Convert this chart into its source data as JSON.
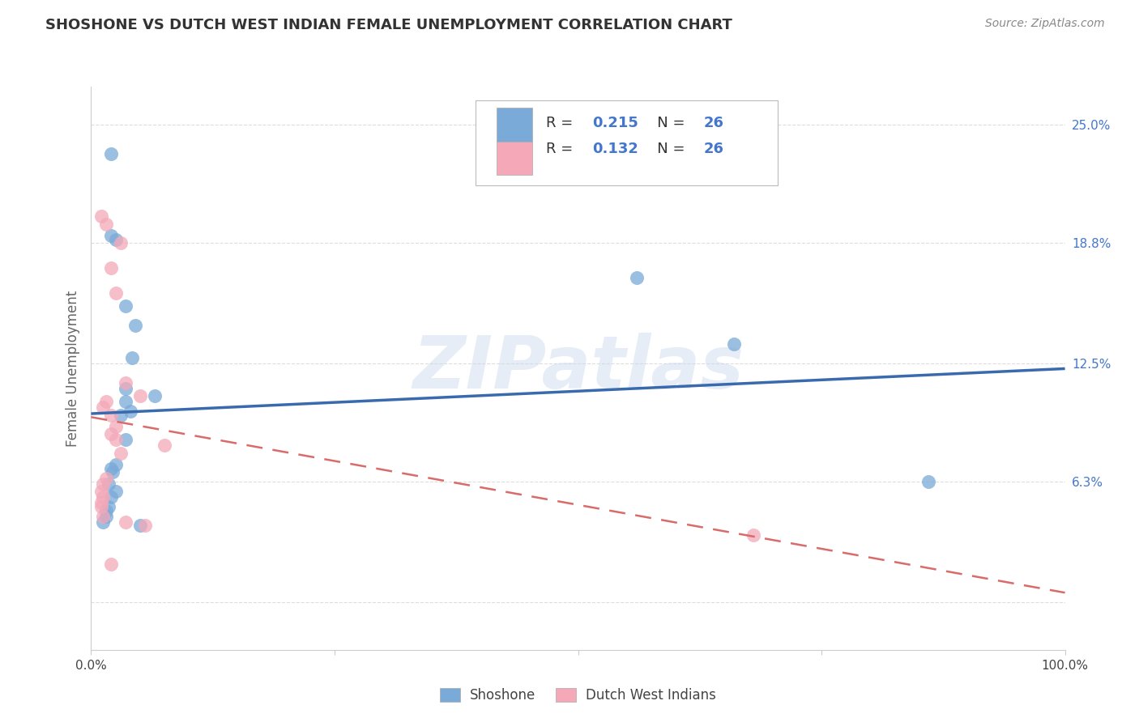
{
  "title": "SHOSHONE VS DUTCH WEST INDIAN FEMALE UNEMPLOYMENT CORRELATION CHART",
  "source": "Source: ZipAtlas.com",
  "ylabel": "Female Unemployment",
  "watermark": "ZIPatlas",
  "legend_shoshone": "Shoshone",
  "legend_dutch": "Dutch West Indians",
  "r_shoshone": "0.215",
  "n_shoshone": "26",
  "r_dutch": "0.132",
  "n_dutch": "26",
  "xlim": [
    0,
    100
  ],
  "ylim": [
    -2.5,
    27.0
  ],
  "yticks": [
    0.0,
    6.3,
    12.5,
    18.8,
    25.0
  ],
  "ytick_labels": [
    "",
    "6.3%",
    "12.5%",
    "18.8%",
    "25.0%"
  ],
  "shoshone_x": [
    2.0,
    3.5,
    4.5,
    4.2,
    2.0,
    2.5,
    3.5,
    6.5,
    3.5,
    4.0,
    3.0,
    3.5,
    2.5,
    2.0,
    2.2,
    1.8,
    2.5,
    2.0,
    1.8,
    1.5,
    1.5,
    1.2,
    5.0,
    56.0,
    66.0,
    86.0
  ],
  "shoshone_y": [
    23.5,
    15.5,
    14.5,
    12.8,
    19.2,
    19.0,
    11.2,
    10.8,
    10.5,
    10.0,
    9.8,
    8.5,
    7.2,
    7.0,
    6.8,
    6.2,
    5.8,
    5.5,
    5.0,
    4.8,
    4.5,
    4.2,
    4.0,
    17.0,
    13.5,
    6.3
  ],
  "dutch_x": [
    1.0,
    1.5,
    3.0,
    2.0,
    2.5,
    3.5,
    5.0,
    1.5,
    1.2,
    2.0,
    2.5,
    2.0,
    2.5,
    7.5,
    3.0,
    1.5,
    1.2,
    1.0,
    1.2,
    1.0,
    1.0,
    1.2,
    3.5,
    5.5,
    68.0,
    2.0
  ],
  "dutch_y": [
    20.2,
    19.8,
    18.8,
    17.5,
    16.2,
    11.5,
    10.8,
    10.5,
    10.2,
    9.8,
    9.2,
    8.8,
    8.5,
    8.2,
    7.8,
    6.5,
    6.2,
    5.8,
    5.5,
    5.2,
    5.0,
    4.5,
    4.2,
    4.0,
    3.5,
    2.0
  ],
  "blue_scatter_color": "#7AAAD8",
  "pink_scatter_color": "#F4A8B8",
  "blue_line_color": "#3A6AAE",
  "pink_line_color": "#D96B6B",
  "grid_color": "#DDDDDD",
  "bg_color": "#FFFFFF",
  "title_color": "#333333",
  "axis_label_color": "#666666",
  "right_tick_color": "#4477CC",
  "legend_text_color": "#333333",
  "legend_value_color": "#4477CC",
  "watermark_color": "#C8D8EC"
}
